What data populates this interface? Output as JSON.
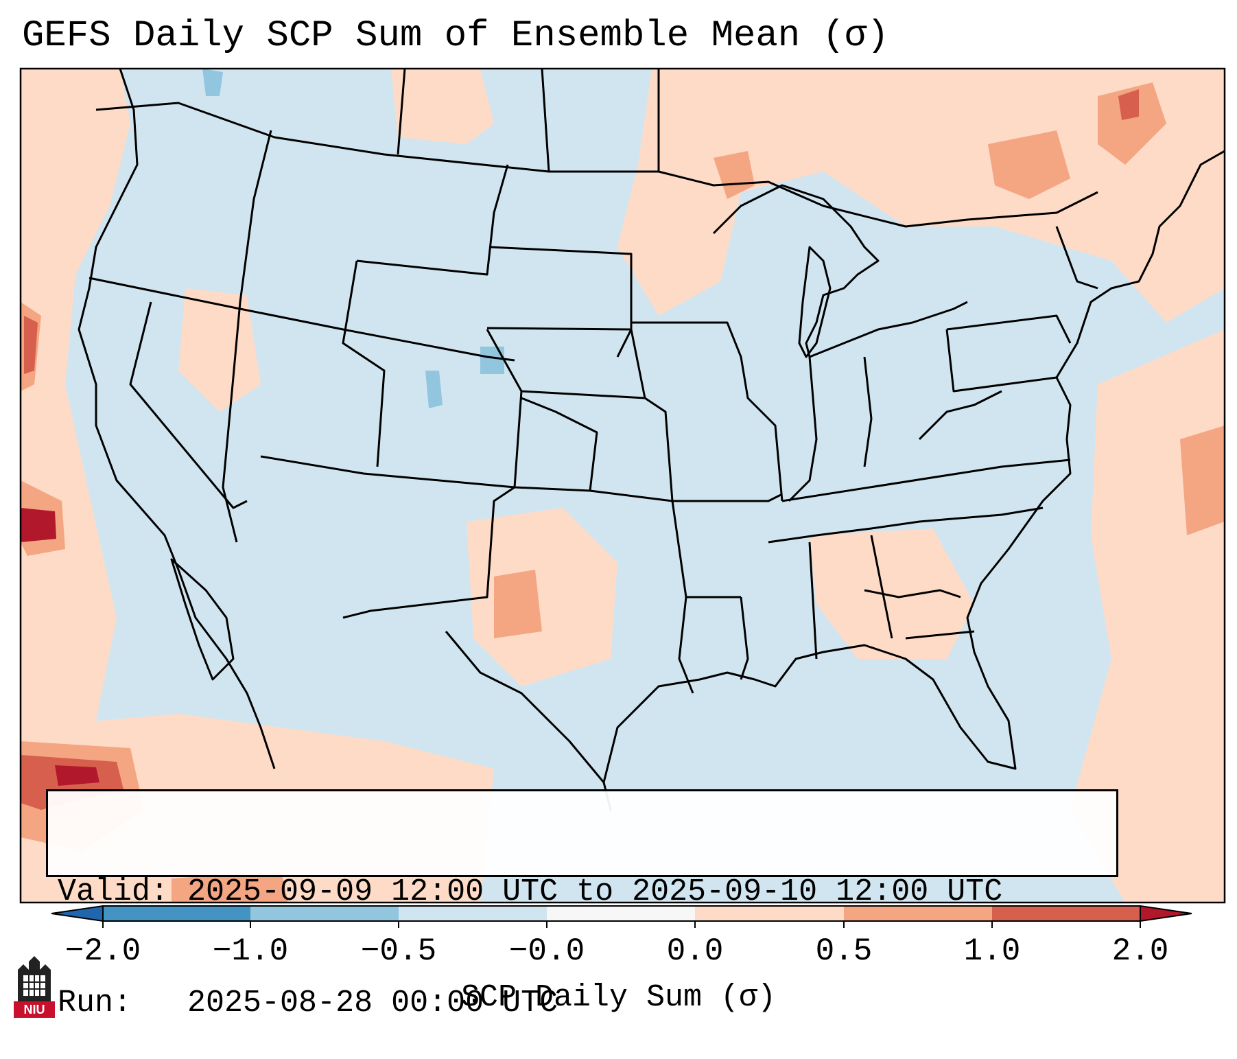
{
  "title": "GEFS Daily SCP Sum of Ensemble Mean (σ)",
  "info": {
    "valid_line": "Valid: 2025-09-09 12:00 UTC to 2025-09-10 12:00 UTC",
    "run_line": "Run:   2025-08-28 00:00 UTC"
  },
  "colorbar": {
    "label": "SCP Daily Sum (σ)",
    "tick_labels": [
      "−2.0",
      "−1.0",
      "−0.5",
      "−0.0",
      "0.0",
      "0.5",
      "1.0",
      "2.0"
    ],
    "bins": [
      {
        "range": "< -2.0",
        "color": "#2166ac"
      },
      {
        "range": "-2.0 to -1.0",
        "color": "#4393c3"
      },
      {
        "range": "-1.0 to -0.5",
        "color": "#92c5de"
      },
      {
        "range": "-0.5 to -0.0",
        "color": "#d1e5f0"
      },
      {
        "range": "-0.0 to 0.0",
        "color": "#f7f7f7"
      },
      {
        "range": "0.0 to 0.5",
        "color": "#fddbc7"
      },
      {
        "range": "0.5 to 1.0",
        "color": "#f4a582"
      },
      {
        "range": "1.0 to 2.0",
        "color": "#d6604d"
      },
      {
        "range": "> 2.0",
        "color": "#b2182b"
      }
    ]
  },
  "map": {
    "background_color": "#d1e5f0",
    "border_color": "#000000"
  },
  "logo": {
    "text": "NIU",
    "color": "#c8102e"
  }
}
